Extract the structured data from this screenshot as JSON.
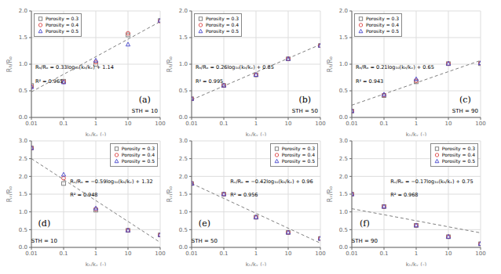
{
  "chart_data": [
    {
      "type": "scatter",
      "annotations": [
        "Rₕ/Rₒ = 0.33log₁₀(kₕ/kᵥ) + 1.14",
        "R² = 0.965",
        "STH = 10",
        "(a)"
      ],
      "x_label": "kₕ/kᵥ (-)",
      "y_label": "Rₕ/Rₒ",
      "x": [
        0.01,
        0.1,
        1.0,
        10.0,
        100.0
      ],
      "series": [
        {
          "name": "Porosity = 0.3",
          "color": "#777777",
          "marker": "square",
          "values": [
            0.6,
            0.68,
            1.0,
            1.55,
            1.82
          ]
        },
        {
          "name": "Porosity = 0.4",
          "color": "#dd4444",
          "marker": "circle",
          "values": [
            0.58,
            0.67,
            1.04,
            1.58,
            1.81
          ]
        },
        {
          "name": "Porosity = 0.5",
          "color": "#4444cc",
          "marker": "triangle",
          "values": [
            0.57,
            0.66,
            1.07,
            1.37,
            1.82
          ]
        },
        {
          "type": "line",
          "color": "gray",
          "line_style": "dashed",
          "values": [
            0.48,
            0.81,
            1.14,
            1.47,
            1.8
          ]
        }
      ],
      "xlim": [
        0.01,
        100
      ],
      "xticks": [
        0.01,
        0.1,
        1,
        10,
        100
      ],
      "ylim": [
        0,
        2
      ],
      "yticks": [
        {
          "value": 0,
          "label": "0.0"
        },
        0.5,
        {
          "value": 1,
          "label": "1.0"
        },
        1.5,
        {
          "value": 2,
          "label": "2.0"
        }
      ],
      "log": "x",
      "grid": true,
      "legend": "upper left"
    },
    {
      "type": "scatter",
      "annotations": [
        "Rₕ/Rₒ = 0.26log₁₀(kₕ/kᵥ) + 0.85",
        "R² = 0.995",
        "STH = 50",
        "(b)"
      ],
      "x_label": "kₕ/kᵥ (-)",
      "y_label": "Rₕ/Rₒ",
      "x": [
        0.01,
        0.1,
        1.0,
        10.0,
        100.0
      ],
      "series": [
        {
          "name": "Porosity = 0.3",
          "color": "#777777",
          "marker": "square",
          "values": [
            0.35,
            0.6,
            0.8,
            1.1,
            1.35
          ]
        },
        {
          "name": "Porosity = 0.4",
          "color": "#dd4444",
          "marker": "circle",
          "values": [
            0.35,
            0.6,
            0.8,
            1.1,
            1.35
          ]
        },
        {
          "name": "Porosity = 0.5",
          "color": "#4444cc",
          "marker": "triangle",
          "values": [
            0.35,
            0.6,
            0.8,
            1.1,
            1.35
          ]
        },
        {
          "type": "line",
          "color": "gray",
          "line_style": "dashed",
          "values": [
            0.33,
            0.59,
            0.85,
            1.11,
            1.37
          ]
        }
      ],
      "xlim": [
        0.01,
        100
      ],
      "xticks": [
        0.01,
        0.1,
        1,
        10,
        100
      ],
      "ylim": [
        0,
        2
      ],
      "yticks": [
        {
          "value": 0,
          "label": "0.0"
        },
        0.5,
        {
          "value": 1,
          "label": "1.0"
        },
        1.5,
        {
          "value": 2,
          "label": "2.0"
        }
      ],
      "log": "x",
      "grid": true,
      "legend": "upper left"
    },
    {
      "type": "scatter",
      "annotations": [
        "Rₕ/Rₒ = 0.21log₁₀(kₕ/kᵥ) + 0.65",
        "R² = 0.943",
        "STH = 90",
        "(c)"
      ],
      "x_label": "kₕ/kᵥ (-)",
      "y_label": "Rₕ/Rₒ",
      "x": [
        0.01,
        0.1,
        1.0,
        10.0,
        100.0
      ],
      "series": [
        {
          "name": "Porosity = 0.3",
          "color": "#777777",
          "marker": "square",
          "values": [
            0.12,
            0.41,
            0.67,
            1.01,
            1.01
          ]
        },
        {
          "name": "Porosity = 0.4",
          "color": "#dd4444",
          "marker": "circle",
          "values": [
            0.12,
            0.42,
            0.69,
            1.01,
            1.02
          ]
        },
        {
          "name": "Porosity = 0.5",
          "color": "#4444cc",
          "marker": "triangle",
          "values": [
            0.12,
            0.43,
            0.72,
            1.01,
            1.02
          ]
        },
        {
          "type": "line",
          "color": "gray",
          "line_style": "dashed",
          "values": [
            0.23,
            0.44,
            0.65,
            0.86,
            1.07
          ]
        }
      ],
      "xlim": [
        0.01,
        100
      ],
      "xticks": [
        0.01,
        0.1,
        1,
        10,
        100
      ],
      "ylim": [
        0,
        2
      ],
      "yticks": [
        {
          "value": 0,
          "label": "0.0"
        },
        0.5,
        {
          "value": 1,
          "label": "1.0"
        },
        1.5,
        {
          "value": 2,
          "label": "2.0"
        }
      ],
      "log": "x",
      "grid": true,
      "legend": "upper left"
    },
    {
      "type": "scatter",
      "annotations": [
        "Rᵥ/Rₒ = −0.59log₁₀(kₕ/kᵥ) + 1.32",
        "R² = 0.948",
        "STH = 10",
        "(d)"
      ],
      "x_label": "kₕ/kᵥ (-)",
      "y_label": "Rᵥ/Rₒ",
      "x": [
        0.01,
        0.1,
        1.0,
        10.0,
        100.0
      ],
      "series": [
        {
          "name": "Porosity = 0.3",
          "color": "#777777",
          "marker": "square",
          "values": [
            2.8,
            1.8,
            1.05,
            0.48,
            0.35
          ]
        },
        {
          "name": "Porosity = 0.4",
          "color": "#dd4444",
          "marker": "circle",
          "values": [
            2.8,
            1.95,
            1.08,
            0.48,
            0.35
          ]
        },
        {
          "name": "Porosity = 0.5",
          "color": "#4444cc",
          "marker": "triangle",
          "values": [
            2.8,
            2.05,
            1.1,
            0.48,
            0.35
          ]
        },
        {
          "type": "line",
          "color": "gray",
          "line_style": "dashed",
          "values": [
            2.5,
            1.91,
            1.32,
            0.73,
            0.14
          ]
        }
      ],
      "xlim": [
        0.01,
        100
      ],
      "xticks": [
        0.01,
        0.1,
        1,
        10,
        100
      ],
      "ylim": [
        0,
        3
      ],
      "yticks": [
        {
          "value": 0,
          "label": "0.0"
        },
        0.5,
        {
          "value": 1,
          "label": "1.0"
        },
        1.5,
        {
          "value": 2,
          "label": "2.0"
        },
        2.5,
        {
          "value": 3,
          "label": "3.0"
        }
      ],
      "log": "x",
      "grid": true,
      "legend": "upper right"
    },
    {
      "type": "scatter",
      "annotations": [
        "Rᵥ/Rₒ = −0.42log₁₀(kₕ/kᵥ) + 0.96",
        "R² = 0.956",
        "STH = 50",
        "(e)"
      ],
      "x_label": "kₕ/kᵥ (-)",
      "y_label": "Rᵥ/Rₒ",
      "x": [
        0.01,
        0.1,
        1.0,
        10.0,
        100.0
      ],
      "series": [
        {
          "name": "Porosity = 0.3",
          "color": "#777777",
          "marker": "square",
          "values": [
            1.8,
            1.5,
            0.85,
            0.42,
            0.25
          ]
        },
        {
          "name": "Porosity = 0.4",
          "color": "#dd4444",
          "marker": "circle",
          "values": [
            1.8,
            1.5,
            0.85,
            0.42,
            0.25
          ]
        },
        {
          "name": "Porosity = 0.5",
          "color": "#4444cc",
          "marker": "triangle",
          "values": [
            1.8,
            1.5,
            0.85,
            0.42,
            0.25
          ]
        },
        {
          "type": "line",
          "color": "gray",
          "line_style": "dashed",
          "values": [
            1.8,
            1.38,
            0.96,
            0.54,
            0.12
          ]
        }
      ],
      "xlim": [
        0.01,
        100
      ],
      "xticks": [
        0.01,
        0.1,
        1,
        10,
        100
      ],
      "ylim": [
        0,
        3
      ],
      "yticks": [
        {
          "value": 0,
          "label": "0.0"
        },
        0.5,
        {
          "value": 1,
          "label": "1.0"
        },
        1.5,
        {
          "value": 2,
          "label": "2.0"
        },
        2.5,
        {
          "value": 3,
          "label": "3.0"
        }
      ],
      "log": "x",
      "grid": true,
      "legend": "upper right"
    },
    {
      "type": "scatter",
      "annotations": [
        "Rᵥ/Rₒ = −0.17log₁₀(kₕ/kᵥ) + 0.75",
        "R² = 0.968",
        "STH = 90",
        "(f)"
      ],
      "x_label": "kₕ/kᵥ (-)",
      "y_label": "Rᵥ/Rₒ",
      "x": [
        0.01,
        0.1,
        1.0,
        10.0,
        100.0
      ],
      "series": [
        {
          "name": "Porosity = 0.3",
          "color": "#777777",
          "marker": "square",
          "values": [
            1.5,
            1.15,
            0.62,
            0.3,
            0.1
          ]
        },
        {
          "name": "Porosity = 0.4",
          "color": "#dd4444",
          "marker": "circle",
          "values": [
            1.5,
            1.15,
            0.62,
            0.3,
            0.1
          ]
        },
        {
          "name": "Porosity = 0.5",
          "color": "#4444cc",
          "marker": "triangle",
          "values": [
            1.5,
            1.15,
            0.62,
            0.3,
            0.1
          ]
        },
        {
          "type": "line",
          "color": "gray",
          "line_style": "dashed",
          "values": [
            1.09,
            0.92,
            0.75,
            0.58,
            0.41
          ]
        }
      ],
      "xlim": [
        0.01,
        100
      ],
      "xticks": [
        0.01,
        0.1,
        1,
        10,
        100
      ],
      "ylim": [
        0,
        3
      ],
      "yticks": [
        {
          "value": 0,
          "label": "0.0"
        },
        0.5,
        {
          "value": 1,
          "label": "1.0"
        },
        1.5,
        {
          "value": 2,
          "label": "2.0"
        },
        2.5,
        {
          "value": 3,
          "label": "3.0"
        }
      ],
      "log": "x",
      "grid": true,
      "legend": "upper right"
    }
  ]
}
